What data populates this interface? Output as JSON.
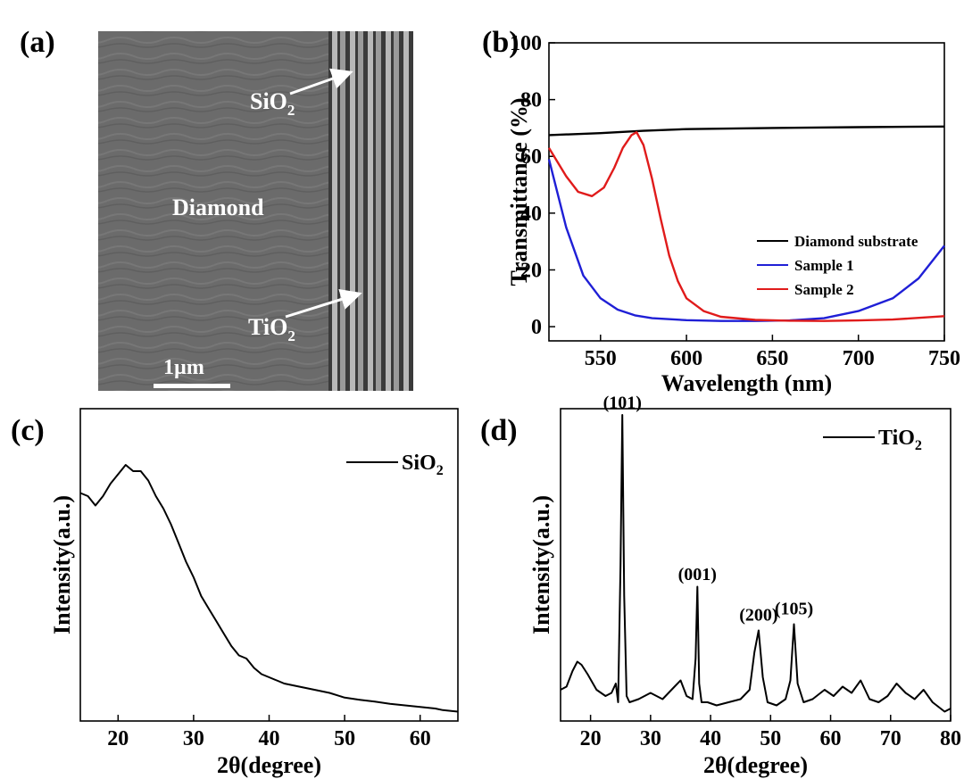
{
  "panels": {
    "a": {
      "label": "(a)",
      "image_labels": {
        "sio2_main": "SiO",
        "sio2_sub": "2",
        "diamond": "Diamond",
        "tio2_main": "TiO",
        "tio2_sub": "2",
        "scalebar": "1µm"
      },
      "colors": {
        "background": "#6b6b6b",
        "stripe_light": "#b8b8b8",
        "stripe_dark": "#3a3a3a"
      }
    },
    "b": {
      "label": "(b)"
    },
    "c": {
      "label": "(c)"
    },
    "d": {
      "label": "(d)"
    }
  },
  "chart_data": [
    {
      "panel": "b",
      "type": "line",
      "xlabel": "Wavelength (nm)",
      "ylabel": "Transmittance (%)",
      "xlim": [
        520,
        750
      ],
      "ylim": [
        -5,
        100
      ],
      "xticks": [
        550,
        600,
        650,
        700,
        750
      ],
      "yticks": [
        0,
        20,
        40,
        60,
        80,
        100
      ],
      "legend": "bottom-right",
      "series": [
        {
          "name": "Diamond substrate",
          "color": "#000000",
          "x": [
            520,
            550,
            575,
            600,
            650,
            700,
            750
          ],
          "y": [
            67.5,
            68.2,
            69.0,
            69.6,
            70.0,
            70.3,
            70.5
          ]
        },
        {
          "name": "Sample 1",
          "color": "#1f1fd6",
          "x": [
            520,
            530,
            540,
            550,
            560,
            570,
            580,
            600,
            620,
            640,
            660,
            680,
            700,
            720,
            735,
            750
          ],
          "y": [
            59,
            35,
            18,
            10,
            6,
            4,
            3,
            2.3,
            2,
            2,
            2.2,
            3,
            5.5,
            10,
            17,
            28.5
          ]
        },
        {
          "name": "Sample 2",
          "color": "#e01b1b",
          "x": [
            520,
            530,
            537,
            545,
            552,
            558,
            563,
            568,
            571,
            575,
            580,
            585,
            590,
            595,
            600,
            610,
            620,
            640,
            660,
            680,
            700,
            720,
            750
          ],
          "y": [
            63,
            53,
            47.5,
            46,
            49,
            56,
            63,
            67.5,
            68.5,
            64,
            52,
            38,
            25,
            16,
            10,
            5.5,
            3.5,
            2.4,
            2.1,
            2,
            2.2,
            2.5,
            3.7
          ]
        }
      ]
    },
    {
      "panel": "c",
      "type": "line",
      "xlabel": "2θ(degree)",
      "ylabel": "Intensity(a.u.)",
      "xlim": [
        15,
        65
      ],
      "ylim": [
        0,
        1
      ],
      "xticks": [
        20,
        30,
        40,
        50,
        60
      ],
      "yticks": [],
      "legend": "top-right",
      "series": [
        {
          "name": "SiO",
          "name_sub": "2",
          "color": "#000000",
          "x": [
            15,
            16,
            17,
            18,
            19,
            20,
            21,
            22,
            23,
            24,
            25,
            26,
            27,
            28,
            29,
            30,
            31,
            32,
            33,
            34,
            35,
            36,
            37,
            38,
            39,
            40,
            41,
            42,
            44,
            46,
            48,
            50,
            52,
            54,
            56,
            58,
            60,
            62,
            63,
            65
          ],
          "y": [
            0.73,
            0.72,
            0.69,
            0.72,
            0.76,
            0.79,
            0.82,
            0.8,
            0.8,
            0.77,
            0.72,
            0.68,
            0.63,
            0.57,
            0.51,
            0.46,
            0.4,
            0.36,
            0.32,
            0.28,
            0.24,
            0.21,
            0.2,
            0.17,
            0.15,
            0.14,
            0.13,
            0.12,
            0.11,
            0.1,
            0.09,
            0.075,
            0.068,
            0.062,
            0.055,
            0.05,
            0.045,
            0.04,
            0.035,
            0.03
          ]
        }
      ]
    },
    {
      "panel": "d",
      "type": "line",
      "xlabel": "2θ(degree)",
      "ylabel": "Intensity(a.u.)",
      "xlim": [
        15,
        80
      ],
      "ylim": [
        0,
        1
      ],
      "xticks": [
        20,
        30,
        40,
        50,
        60,
        70,
        80
      ],
      "yticks": [],
      "legend": "top-right",
      "annotations": [
        {
          "text": "(101)",
          "x": 25.3,
          "y": 0.985
        },
        {
          "text": "(001)",
          "x": 37.8,
          "y": 0.435
        },
        {
          "text": "(200)",
          "x": 48.0,
          "y": 0.305
        },
        {
          "text": "(105)",
          "x": 53.9,
          "y": 0.325
        }
      ],
      "series": [
        {
          "name": "TiO",
          "name_sub": "2",
          "color": "#000000",
          "x": [
            15,
            16,
            17,
            17.8,
            18.5,
            19.5,
            21,
            22.5,
            23.5,
            24.2,
            24.6,
            25.0,
            25.3,
            25.6,
            26.0,
            26.5,
            28,
            30,
            32,
            34,
            35,
            36,
            37,
            37.5,
            37.8,
            38.1,
            38.5,
            39.5,
            41,
            43,
            45,
            46.5,
            47.3,
            48.0,
            48.7,
            49.5,
            51,
            52.5,
            53.3,
            53.9,
            54.5,
            55.5,
            57,
            59,
            60.5,
            62,
            63.5,
            65,
            66.5,
            68,
            69.5,
            71,
            72.5,
            74,
            75.5,
            77,
            79,
            80
          ],
          "y": [
            0.1,
            0.11,
            0.16,
            0.19,
            0.18,
            0.15,
            0.1,
            0.08,
            0.09,
            0.12,
            0.06,
            0.5,
            0.98,
            0.4,
            0.08,
            0.06,
            0.07,
            0.09,
            0.07,
            0.11,
            0.13,
            0.08,
            0.07,
            0.2,
            0.43,
            0.12,
            0.06,
            0.06,
            0.05,
            0.06,
            0.07,
            0.1,
            0.22,
            0.29,
            0.14,
            0.06,
            0.05,
            0.07,
            0.13,
            0.31,
            0.12,
            0.06,
            0.07,
            0.1,
            0.08,
            0.11,
            0.09,
            0.13,
            0.07,
            0.06,
            0.08,
            0.12,
            0.09,
            0.07,
            0.1,
            0.06,
            0.03,
            0.04
          ]
        }
      ]
    }
  ]
}
